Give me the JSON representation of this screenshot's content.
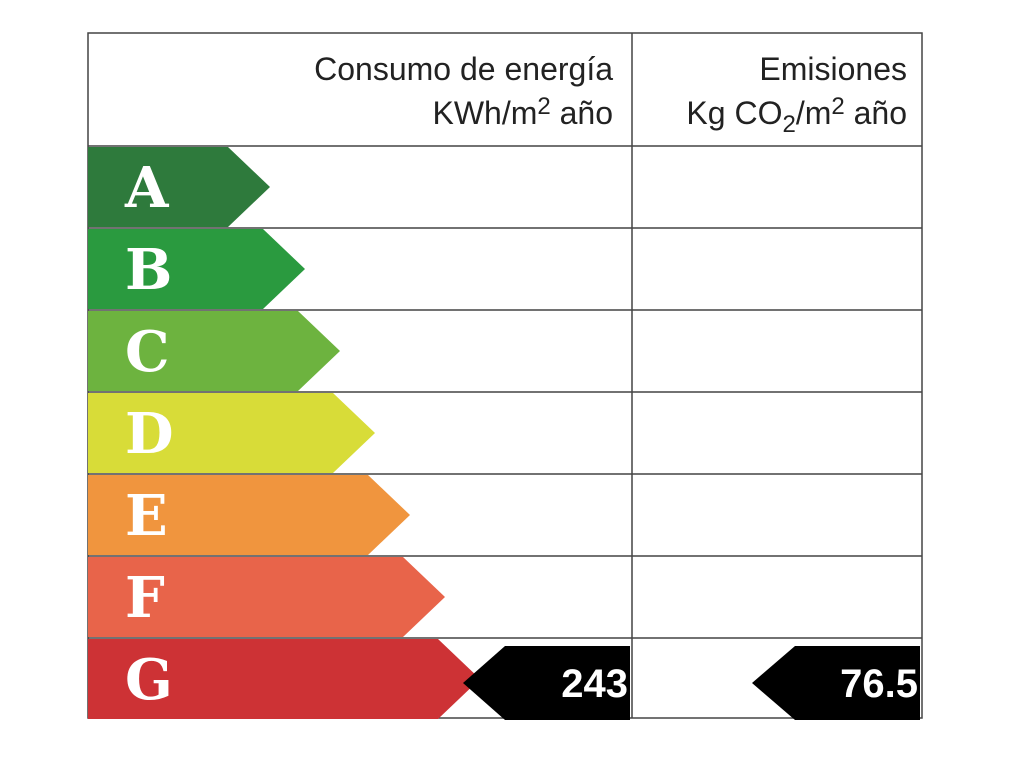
{
  "header": {
    "energy": {
      "title": "Consumo de energía",
      "unit": [
        "KWh/m",
        "2",
        " año"
      ]
    },
    "emissions": {
      "title": "Emisiones",
      "unit": [
        "Kg CO",
        "2",
        "/m",
        "2",
        " año"
      ]
    }
  },
  "ratings": [
    {
      "letter": "A",
      "color": "#2e7a3c"
    },
    {
      "letter": "B",
      "color": "#2a9a3f"
    },
    {
      "letter": "C",
      "color": "#6db33f"
    },
    {
      "letter": "D",
      "color": "#d8dc38"
    },
    {
      "letter": "E",
      "color": "#f0953e"
    },
    {
      "letter": "F",
      "color": "#e8644a"
    },
    {
      "letter": "G",
      "color": "#cd3235"
    }
  ],
  "energy_value": 243,
  "emissions_value": 76.5
}
